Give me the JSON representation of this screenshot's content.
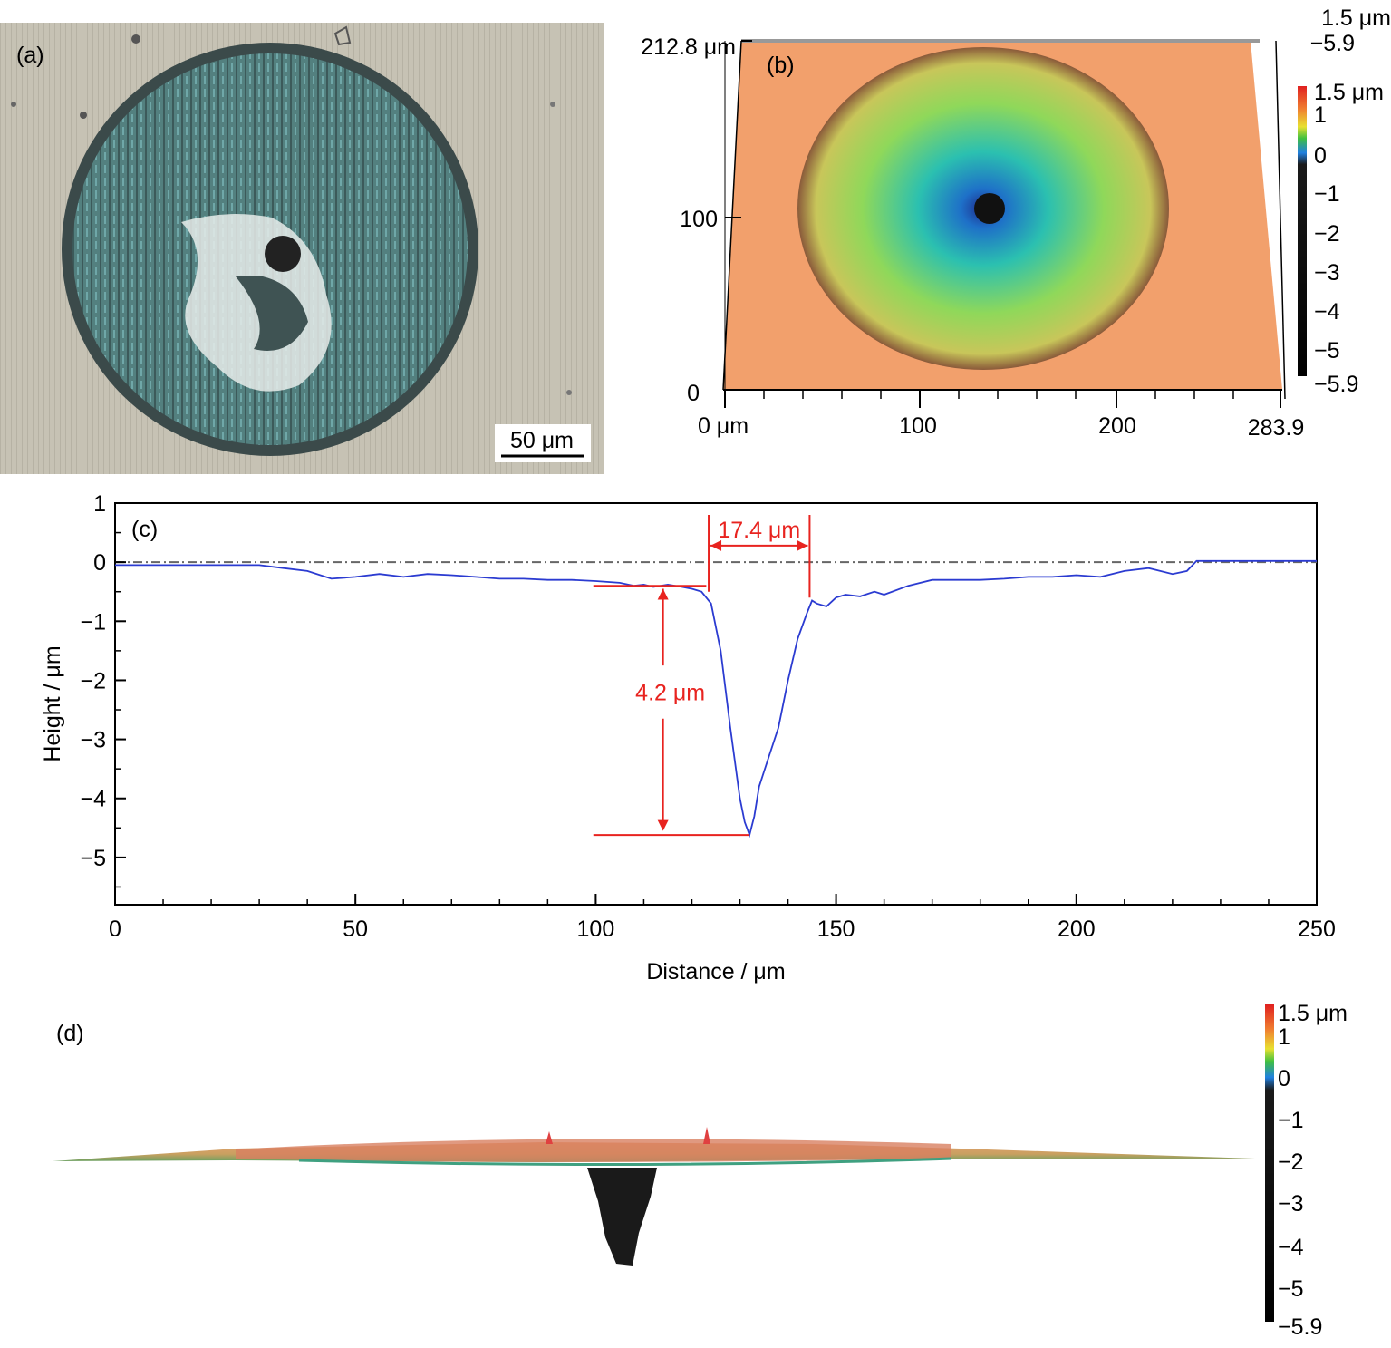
{
  "panel_a": {
    "label": "(a)",
    "scale_bar": "50 μm"
  },
  "panel_b": {
    "label": "(b)",
    "y_top": "212.8 μm",
    "y_ticks": [
      "100",
      "0"
    ],
    "x_ticks": [
      "0 μm",
      "100",
      "200",
      "283.9"
    ],
    "z_top": "1.5 μm",
    "z_bottom": "−5.9",
    "colorbar": [
      "1.5 μm",
      "1",
      "0",
      "−1",
      "−2",
      "−3",
      "−4",
      "−5",
      "−5.9"
    ]
  },
  "panel_d": {
    "label": "(d)",
    "colorbar": [
      "1.5 μm",
      "1",
      "0",
      "−1",
      "−2",
      "−3",
      "−4",
      "−5",
      "−5.9"
    ]
  },
  "chart_data": {
    "type": "line",
    "label": "(c)",
    "xlabel": "Distance / μm",
    "ylabel": "Height / μm",
    "xlim": [
      0,
      250
    ],
    "ylim": [
      -5.8,
      1
    ],
    "xticks": [
      0,
      50,
      100,
      150,
      200,
      250
    ],
    "yticks": [
      1,
      0,
      -1,
      -2,
      -3,
      -4,
      -5
    ],
    "reference_line": 0,
    "series": [
      {
        "color": "#2b3bd1",
        "x": [
          0,
          10,
          20,
          30,
          35,
          40,
          45,
          50,
          55,
          60,
          65,
          70,
          75,
          80,
          85,
          90,
          95,
          100,
          105,
          108,
          110,
          112,
          115,
          118,
          120,
          122,
          124,
          126,
          128,
          130,
          131,
          132,
          133,
          134,
          136,
          138,
          140,
          142,
          144,
          145,
          146,
          148,
          150,
          152,
          155,
          158,
          160,
          165,
          170,
          175,
          180,
          185,
          190,
          195,
          200,
          205,
          210,
          215,
          220,
          223,
          225,
          230,
          240,
          250
        ],
        "values": [
          -0.05,
          -0.05,
          -0.05,
          -0.05,
          -0.1,
          -0.15,
          -0.28,
          -0.25,
          -0.2,
          -0.25,
          -0.2,
          -0.22,
          -0.25,
          -0.28,
          -0.28,
          -0.3,
          -0.3,
          -0.32,
          -0.35,
          -0.4,
          -0.38,
          -0.42,
          -0.38,
          -0.42,
          -0.45,
          -0.5,
          -0.7,
          -1.5,
          -2.8,
          -4.0,
          -4.4,
          -4.62,
          -4.3,
          -3.8,
          -3.3,
          -2.8,
          -2.0,
          -1.3,
          -0.85,
          -0.65,
          -0.7,
          -0.75,
          -0.6,
          -0.55,
          -0.58,
          -0.5,
          -0.55,
          -0.4,
          -0.3,
          -0.3,
          -0.3,
          -0.28,
          -0.25,
          -0.25,
          -0.22,
          -0.25,
          -0.15,
          -0.1,
          -0.2,
          -0.15,
          0.02,
          0.02,
          0.02,
          0.02
        ]
      }
    ],
    "annotations": [
      {
        "text": "17.4 μm",
        "color": "#e8231f",
        "x_from": 123.5,
        "x_to": 144.5,
        "y": 0.6
      },
      {
        "text": "4.2 μm",
        "color": "#e8231f",
        "x": 114,
        "y_from": -0.4,
        "y_to": -4.62
      }
    ]
  }
}
